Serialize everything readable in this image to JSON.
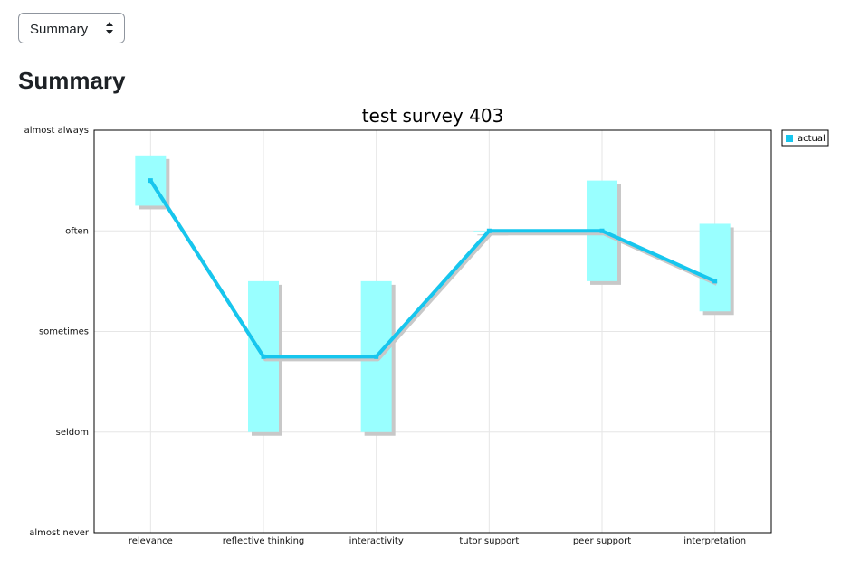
{
  "view_select": {
    "selected": "Summary"
  },
  "page_title": "Summary",
  "colors": {
    "range_box": "#99ffff",
    "range_shadow": "#c8c8c8",
    "line": "#16c6ee",
    "line_shadow": "#c8c8c8",
    "grid": "#e6e6e6",
    "frame": "#000000"
  },
  "chart_data": {
    "type": "line",
    "title": "test survey 403",
    "categories": [
      "relevance",
      "reflective thinking",
      "interactivity",
      "tutor support",
      "peer support",
      "interpretation"
    ],
    "y_tick_labels": [
      "almost never",
      "seldom",
      "sometimes",
      "often",
      "almost always"
    ],
    "ylim": [
      1,
      5
    ],
    "grid": true,
    "legend_position": "top-right",
    "series": [
      {
        "name": "actual",
        "values": [
          4.5,
          2.75,
          2.75,
          4.0,
          4.0,
          3.5
        ]
      }
    ],
    "ranges": [
      {
        "low": 4.25,
        "high": 4.75
      },
      {
        "low": 2.0,
        "high": 3.5
      },
      {
        "low": 2.0,
        "high": 3.5
      },
      {
        "low": 4.0,
        "high": 4.0
      },
      {
        "low": 3.5,
        "high": 4.5
      },
      {
        "low": 3.2,
        "high": 4.07
      }
    ]
  }
}
